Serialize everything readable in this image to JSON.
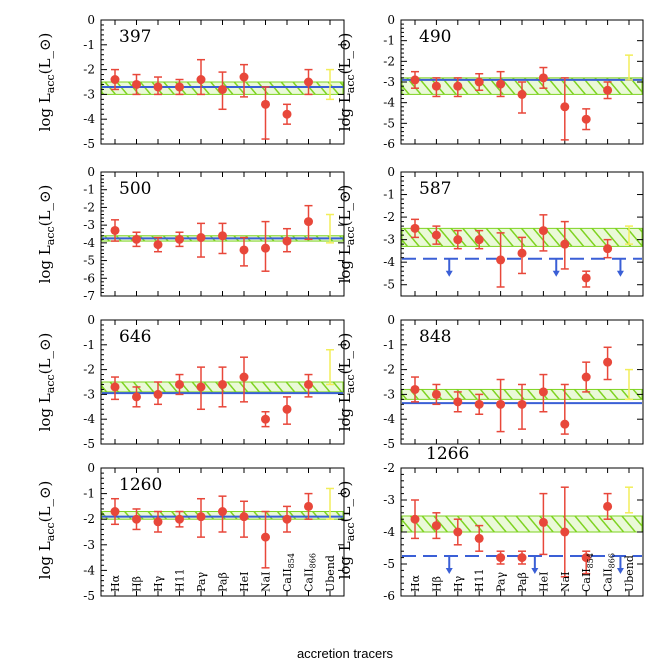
{
  "figure": {
    "ylabel": "log L_acc(L_⊙)",
    "xlabel": "accretion tracers"
  },
  "colors": {
    "point": "#e8473a",
    "hatch": "#7ed321",
    "mean_line": "#3a5fd6",
    "uband": "#f2ee5a"
  },
  "chart_data": [
    {
      "type": "scatter",
      "title": "397",
      "ylim": [
        -5,
        0
      ],
      "yticks": [
        0,
        -1,
        -2,
        -3,
        -4,
        -5
      ],
      "categories": [
        "Hα",
        "Hβ",
        "Hγ",
        "H11",
        "Paγ",
        "Paβ",
        "HeI",
        "NaI",
        "CaII854",
        "CaII866",
        "Ubend"
      ],
      "values": [
        -2.4,
        -2.6,
        -2.7,
        -2.7,
        -2.4,
        -2.8,
        -2.3,
        -3.4,
        -3.8,
        -2.5,
        -2.6
      ],
      "err_up": [
        0.4,
        0.4,
        0.4,
        0.3,
        0.8,
        0.7,
        0.5,
        0.7,
        0.4,
        0.5,
        0.6
      ],
      "err_down": [
        0.4,
        0.4,
        0.3,
        0.3,
        0.6,
        0.8,
        0.8,
        1.4,
        0.4,
        0.5,
        0.6
      ],
      "band": [
        -3.0,
        -2.5
      ],
      "mean": -2.7,
      "upper_limits": []
    },
    {
      "type": "scatter",
      "title": "490",
      "ylim": [
        -6,
        0
      ],
      "yticks": [
        0,
        -1,
        -2,
        -3,
        -4,
        -5,
        -6
      ],
      "categories": [
        "Hα",
        "Hβ",
        "Hγ",
        "H11",
        "Paγ",
        "Paβ",
        "HeI",
        "NaI",
        "CaII854",
        "CaII866",
        "Ubend"
      ],
      "values": [
        -2.9,
        -3.2,
        -3.2,
        -3.0,
        -3.1,
        -3.6,
        -2.8,
        -4.2,
        -4.8,
        -3.4,
        -2.3
      ],
      "err_up": [
        0.4,
        0.4,
        0.4,
        0.4,
        0.6,
        0.6,
        0.5,
        1.4,
        0.5,
        0.4,
        0.6
      ],
      "err_down": [
        0.4,
        0.5,
        0.5,
        0.4,
        0.6,
        0.9,
        0.5,
        1.6,
        0.5,
        0.4,
        0.6
      ],
      "band": [
        -3.6,
        -2.8
      ],
      "mean": -2.9,
      "upper_limits": []
    },
    {
      "type": "scatter",
      "title": "500",
      "ylim": [
        -7,
        0
      ],
      "yticks": [
        0,
        -1,
        -2,
        -3,
        -4,
        -5,
        -6,
        -7
      ],
      "categories": [
        "Hα",
        "Hβ",
        "Hγ",
        "H11",
        "Paγ",
        "Paβ",
        "HeI",
        "NaI",
        "CaII854",
        "CaII866",
        "Ubend"
      ],
      "values": [
        -3.3,
        -3.8,
        -4.1,
        -3.8,
        -3.7,
        -3.6,
        -4.4,
        -4.3,
        -3.9,
        -2.8,
        -3.2
      ],
      "err_up": [
        0.6,
        0.4,
        0.4,
        0.4,
        0.8,
        0.7,
        0.7,
        1.5,
        0.7,
        0.9,
        0.8
      ],
      "err_down": [
        0.6,
        0.4,
        0.4,
        0.4,
        1.1,
        1.0,
        0.9,
        1.3,
        0.6,
        1.0,
        0.8
      ],
      "band": [
        -3.9,
        -3.6
      ],
      "mean": -3.75,
      "upper_limits": []
    },
    {
      "type": "scatter",
      "title": "587",
      "ylim": [
        -5.5,
        0
      ],
      "yticks": [
        0,
        -1,
        -2,
        -3,
        -4,
        -5
      ],
      "categories": [
        "Hα",
        "Hβ",
        "Hγ",
        "H11",
        "Paγ",
        "Paβ",
        "HeI",
        "NaI",
        "CaII854",
        "CaII866",
        "Ubend"
      ],
      "values": [
        -2.5,
        -2.8,
        -3.0,
        -3.0,
        -3.9,
        -3.6,
        -2.6,
        -3.2,
        -4.7,
        -3.4,
        -2.8
      ],
      "err_up": [
        0.4,
        0.4,
        0.4,
        0.4,
        1.2,
        0.7,
        0.7,
        1.0,
        0.3,
        0.4,
        0.4
      ],
      "err_down": [
        0.4,
        0.4,
        0.4,
        0.4,
        1.2,
        0.9,
        0.9,
        1.1,
        0.4,
        0.4,
        0.4
      ],
      "band": [
        -3.3,
        -2.5
      ],
      "mean": -3.85,
      "mean_style": "dashed",
      "upper_limits": [
        {
          "x": 2,
          "y": -3.85
        },
        {
          "x": 7,
          "y": -3.85
        },
        {
          "x": 10,
          "y": -3.85
        }
      ]
    },
    {
      "type": "scatter",
      "title": "646",
      "ylim": [
        -5,
        0
      ],
      "yticks": [
        0,
        -1,
        -2,
        -3,
        -4,
        -5
      ],
      "categories": [
        "Hα",
        "Hβ",
        "Hγ",
        "H11",
        "Paγ",
        "Paβ",
        "HeI",
        "NaI",
        "CaII854",
        "CaII866",
        "Ubend"
      ],
      "values": [
        -2.7,
        -3.1,
        -3.0,
        -2.6,
        -2.7,
        -2.6,
        -2.3,
        -4.0,
        -3.6,
        -2.6,
        -1.9
      ],
      "err_up": [
        0.4,
        0.4,
        0.5,
        0.4,
        0.8,
        0.7,
        0.8,
        0.3,
        0.5,
        0.4,
        0.7
      ],
      "err_down": [
        0.5,
        0.4,
        0.4,
        0.4,
        0.9,
        0.9,
        1.0,
        0.3,
        0.6,
        0.5,
        0.7
      ],
      "band": [
        -2.9,
        -2.5
      ],
      "mean": -2.95,
      "upper_limits": []
    },
    {
      "type": "scatter",
      "title": "848",
      "ylim": [
        -5,
        0
      ],
      "yticks": [
        0,
        -1,
        -2,
        -3,
        -4,
        -5
      ],
      "categories": [
        "Hα",
        "Hβ",
        "Hγ",
        "H11",
        "Paγ",
        "Paβ",
        "HeI",
        "NaI",
        "CaII854",
        "CaII866",
        "Ubend"
      ],
      "values": [
        -2.8,
        -3.0,
        -3.3,
        -3.4,
        -3.4,
        -3.4,
        -2.9,
        -4.2,
        -2.3,
        -1.7,
        -2.6
      ],
      "err_up": [
        0.5,
        0.4,
        0.4,
        0.4,
        1.0,
        0.8,
        0.7,
        1.6,
        0.6,
        0.6,
        0.6
      ],
      "err_down": [
        0.5,
        0.4,
        0.4,
        0.4,
        1.1,
        1.0,
        0.8,
        0.4,
        0.6,
        0.7,
        0.6
      ],
      "band": [
        -3.2,
        -2.8
      ],
      "mean": -3.35,
      "upper_limits": []
    },
    {
      "type": "scatter",
      "title": "1260",
      "ylim": [
        -5,
        0
      ],
      "yticks": [
        0,
        -1,
        -2,
        -3,
        -4,
        -5
      ],
      "categories": [
        "Hα",
        "Hβ",
        "Hγ",
        "H11",
        "Paγ",
        "Paβ",
        "HeI",
        "NaI",
        "CaII854",
        "CaII866",
        "Ubend"
      ],
      "values": [
        -1.7,
        -2.0,
        -2.1,
        -2.0,
        -1.9,
        -1.7,
        -1.9,
        -2.7,
        -2.0,
        -1.5,
        -1.4
      ],
      "err_up": [
        0.5,
        0.4,
        0.4,
        0.3,
        0.7,
        0.6,
        0.6,
        1.0,
        0.5,
        0.5,
        0.6
      ],
      "err_down": [
        0.5,
        0.4,
        0.4,
        0.3,
        0.8,
        0.8,
        0.8,
        1.2,
        0.5,
        0.5,
        0.6
      ],
      "band": [
        -2.0,
        -1.7
      ],
      "mean": -1.9,
      "upper_limits": []
    },
    {
      "type": "scatter",
      "title": "1266",
      "ylim": [
        -6,
        -2
      ],
      "yticks": [
        -2,
        -3,
        -4,
        -5,
        -6
      ],
      "categories": [
        "Hα",
        "Hβ",
        "Hγ",
        "H11",
        "Paγ",
        "Paβ",
        "HeI",
        "NaI",
        "CaII854",
        "CaII866",
        "Ubend"
      ],
      "values": [
        -3.6,
        -3.8,
        -4.0,
        -4.2,
        -4.8,
        -4.8,
        -3.7,
        -4.0,
        -4.8,
        -3.2,
        -3.0
      ],
      "err_up": [
        0.6,
        0.4,
        0.4,
        0.4,
        0.2,
        0.2,
        0.9,
        1.4,
        0.2,
        0.4,
        0.4
      ],
      "err_down": [
        0.6,
        0.4,
        0.4,
        0.4,
        0.2,
        0.2,
        1.0,
        1.4,
        0.5,
        0.4,
        0.4
      ],
      "band": [
        -4.0,
        -3.5
      ],
      "mean": -4.75,
      "mean_style": "dashed",
      "upper_limits": [
        {
          "x": 2,
          "y": -4.75
        },
        {
          "x": 6,
          "y": -4.75
        },
        {
          "x": 10,
          "y": -4.75
        }
      ]
    }
  ]
}
